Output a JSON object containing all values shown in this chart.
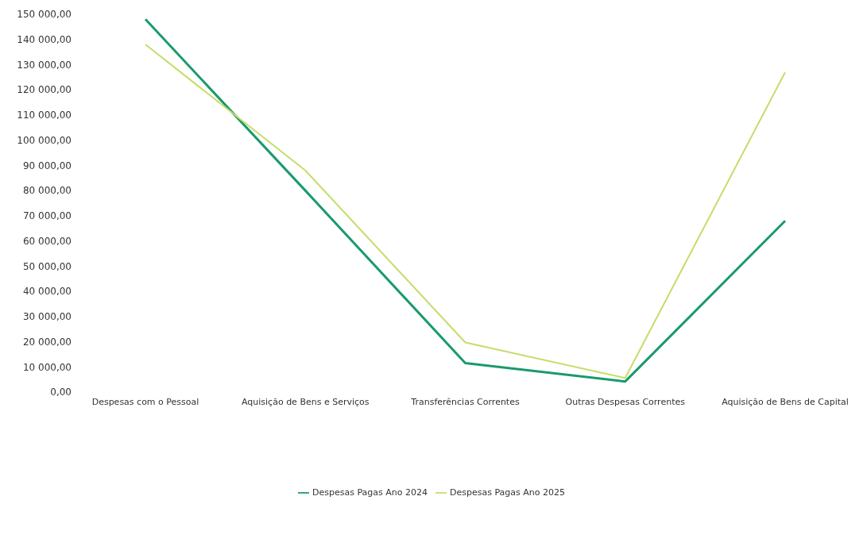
{
  "chart_data": {
    "type": "line",
    "categories": [
      "Despesas com o Pessoal",
      "Aquisição de Bens e Serviços",
      "Transferências Correntes",
      "Outras Despesas Correntes",
      "Aquisição de Bens de Capital"
    ],
    "series": [
      {
        "name": "Despesas Pagas Ano 2024",
        "color": "#1a9a6c",
        "values": [
          148000,
          80000,
          11500,
          4200,
          68000
        ]
      },
      {
        "name": "Despesas Pagas Ano 2025",
        "color": "#c5dd6a",
        "values": [
          138000,
          88000,
          19700,
          5600,
          127000
        ]
      }
    ],
    "ylim": [
      0,
      150000
    ],
    "yticks": [
      {
        "value": 0,
        "label": "0,00"
      },
      {
        "value": 10000,
        "label": "10 000,00"
      },
      {
        "value": 20000,
        "label": "20 000,00"
      },
      {
        "value": 30000,
        "label": "30 000,00"
      },
      {
        "value": 40000,
        "label": "40 000,00"
      },
      {
        "value": 50000,
        "label": "50 000,00"
      },
      {
        "value": 60000,
        "label": "60 000,00"
      },
      {
        "value": 70000,
        "label": "70 000,00"
      },
      {
        "value": 80000,
        "label": "80 000,00"
      },
      {
        "value": 90000,
        "label": "90 000,00"
      },
      {
        "value": 100000,
        "label": "100 000,00"
      },
      {
        "value": 110000,
        "label": "110 000,00"
      },
      {
        "value": 120000,
        "label": "120 000,00"
      },
      {
        "value": 130000,
        "label": "130 000,00"
      },
      {
        "value": 140000,
        "label": "140 000,00"
      },
      {
        "value": 150000,
        "label": "150 000,00"
      }
    ],
    "grid": false,
    "legend": "bottom",
    "marker": "none",
    "line_style": "solid"
  }
}
